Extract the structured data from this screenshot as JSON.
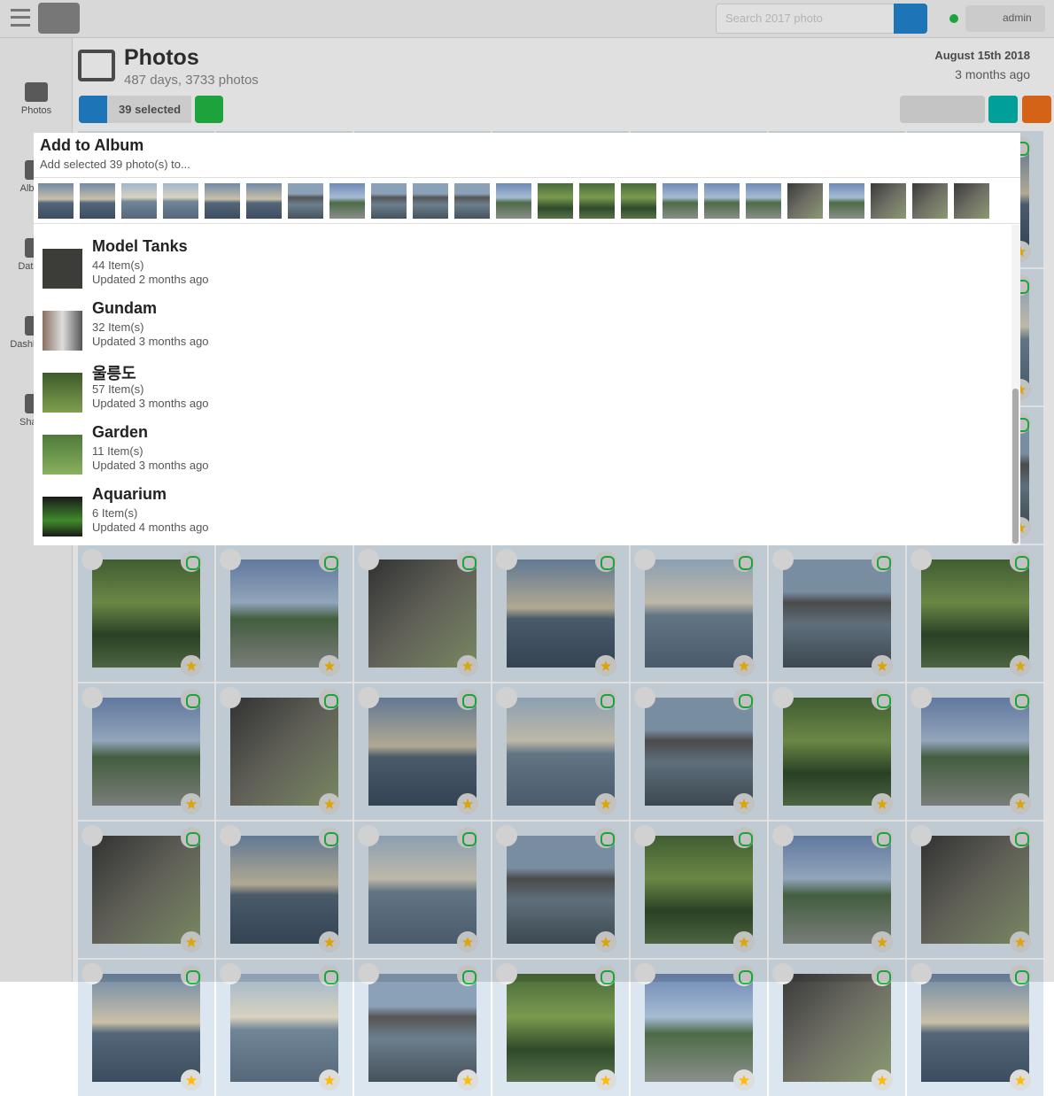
{
  "header": {
    "search_placeholder": "Search 2017 photo",
    "user": "admin"
  },
  "sidebar": {
    "items": [
      "Photos",
      "Albums",
      "Data Viz",
      "Dashboards",
      "Sharing"
    ]
  },
  "page": {
    "title": "Photos",
    "subtitle": "487 days, 3733 photos",
    "date": "August 15th 2018",
    "relative": "3 months ago"
  },
  "toolbar": {
    "selected": "39 selected"
  },
  "modal": {
    "title": "Add to Album",
    "subtitle": "Add selected 39 photo(s) to...",
    "albums": [
      {
        "title": "Model Tanks",
        "count": "44 Item(s)",
        "updated": "Updated 2 months ago"
      },
      {
        "title": "Gundam",
        "count": "32 Item(s)",
        "updated": "Updated 3 months ago"
      },
      {
        "title": "울릉도",
        "count": "57 Item(s)",
        "updated": "Updated 3 months ago"
      },
      {
        "title": "Garden",
        "count": "11 Item(s)",
        "updated": "Updated 3 months ago"
      },
      {
        "title": "Aquarium",
        "count": "6 Item(s)",
        "updated": "Updated 4 months ago"
      }
    ]
  }
}
